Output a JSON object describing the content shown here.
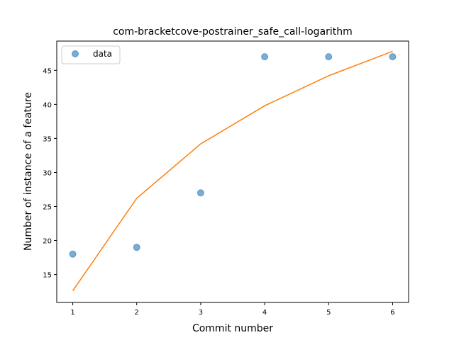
{
  "chart_data": {
    "type": "scatter",
    "title": "com-bracketcove-postrainer_safe_call-logarithm",
    "xlabel": "Commit number",
    "ylabel": "Number of instance of a feature",
    "xlim": [
      0.75,
      6.25
    ],
    "ylim": [
      10.9,
      49.3
    ],
    "xticks": [
      1,
      2,
      3,
      4,
      5,
      6
    ],
    "yticks": [
      15,
      20,
      25,
      30,
      35,
      40,
      45
    ],
    "legend_position": "upper-left",
    "series": [
      {
        "name": "data",
        "kind": "scatter",
        "color": "#1f77b4",
        "x": [
          1,
          2,
          3,
          4,
          5,
          6
        ],
        "y": [
          18,
          19,
          27,
          47,
          47,
          47
        ]
      },
      {
        "kind": "line",
        "color": "#ff7f0e",
        "x": [
          1,
          2,
          3,
          4,
          5,
          6
        ],
        "y": [
          12.6,
          26.2,
          34.2,
          39.8,
          44.2,
          47.8
        ]
      }
    ]
  }
}
